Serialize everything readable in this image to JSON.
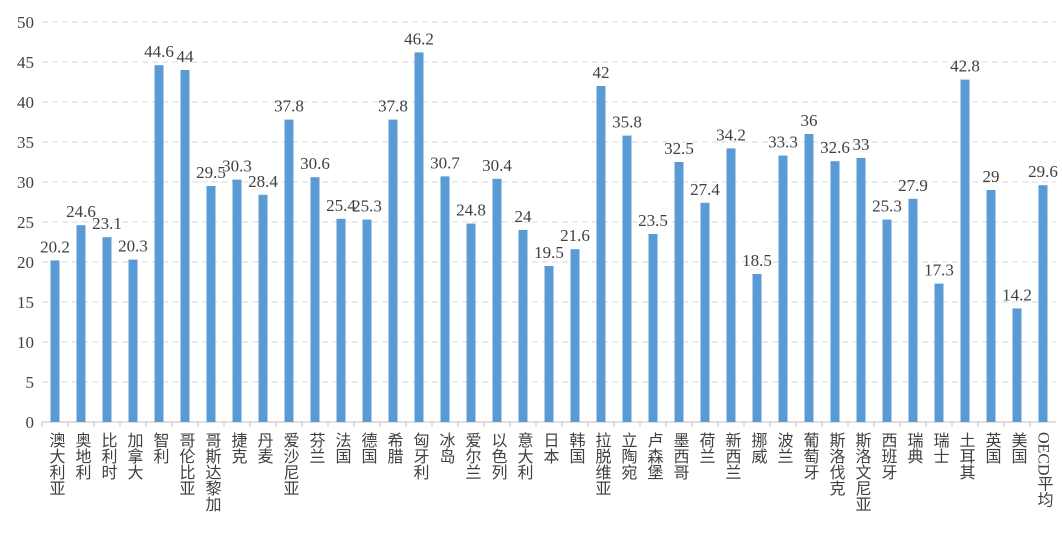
{
  "chart_data": {
    "type": "bar",
    "categories": [
      "澳大利亚",
      "奥地利",
      "比利时",
      "加拿大",
      "智利",
      "哥伦比亚",
      "哥斯达黎加",
      "捷克",
      "丹麦",
      "爱沙尼亚",
      "芬兰",
      "法国",
      "德国",
      "希腊",
      "匈牙利",
      "冰岛",
      "爱尔兰",
      "以色列",
      "意大利",
      "日本",
      "韩国",
      "拉脱维亚",
      "立陶宛",
      "卢森堡",
      "墨西哥",
      "荷兰",
      "新西兰",
      "挪威",
      "波兰",
      "葡萄牙",
      "斯洛伐克",
      "斯洛文尼亚",
      "西班牙",
      "瑞典",
      "瑞士",
      "土耳其",
      "英国",
      "美国",
      "OECD平均"
    ],
    "values": [
      20.2,
      24.6,
      23.1,
      20.3,
      44.6,
      44,
      29.5,
      30.3,
      28.4,
      37.8,
      30.6,
      25.4,
      25.3,
      37.8,
      46.2,
      30.7,
      24.8,
      30.4,
      24,
      19.5,
      21.6,
      42,
      35.8,
      23.5,
      32.5,
      27.4,
      34.2,
      18.5,
      33.3,
      36,
      32.6,
      33,
      25.3,
      27.9,
      17.3,
      42.8,
      29,
      14.2,
      29.6
    ],
    "color": "#5b9bd5",
    "ylim": [
      0,
      50
    ],
    "yticks": [
      0,
      5,
      10,
      15,
      20,
      25,
      30,
      35,
      40,
      45,
      50
    ],
    "grid": true
  }
}
